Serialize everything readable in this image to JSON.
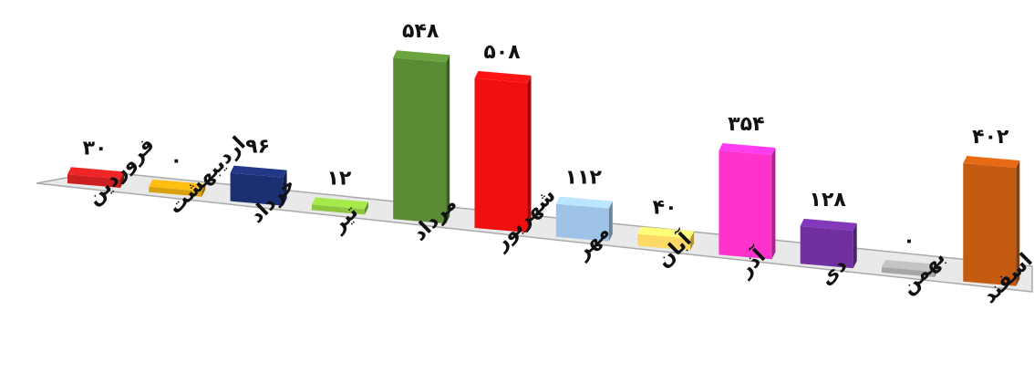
{
  "chart_data": {
    "type": "bar",
    "title": "",
    "xlabel": "",
    "ylabel": "",
    "grid": false,
    "legend": "none",
    "categories": [
      "فروردین",
      "اردیبهشت",
      "خرداد",
      "تیر",
      "مرداد",
      "شهریور",
      "مهر",
      "آبان",
      "آذر",
      "دی",
      "بهمن",
      "اسفند"
    ],
    "values": [
      30,
      0,
      96,
      12,
      548,
      508,
      112,
      40,
      354,
      128,
      0,
      402
    ],
    "value_labels": [
      "۳۰",
      "۰",
      "۹۶",
      "۱۲",
      "۵۴۸",
      "۵۰۸",
      "۱۱۲",
      "۴۰",
      "۳۵۴",
      "۱۲۸",
      "۰",
      "۴۰۲"
    ],
    "colors": [
      "#cc1f1f",
      "#d8a20e",
      "#1d2f73",
      "#8cc63f",
      "#5b8b35",
      "#f01010",
      "#9ec3e6",
      "#ffd966",
      "#ff33cc",
      "#7030a0",
      "#a6a6a6",
      "#c55a11"
    ]
  }
}
